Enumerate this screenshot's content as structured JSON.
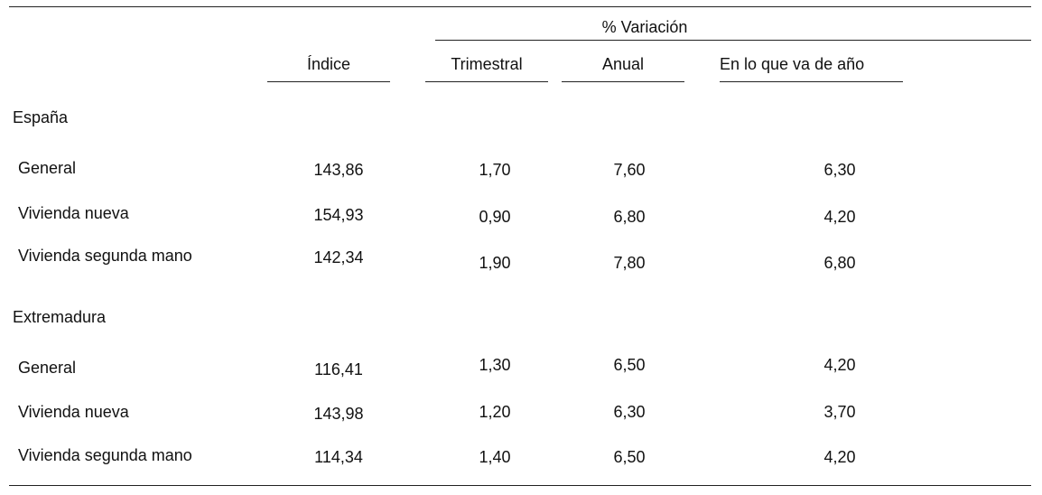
{
  "header": {
    "variacion_label": "% Variación",
    "indice_label": "Índice",
    "trimestral_label": "Trimestral",
    "anual_label": "Anual",
    "ytd_label": "En lo que va de año"
  },
  "sections": [
    {
      "name": "España",
      "rows": [
        {
          "label": "General",
          "indice": "143,86",
          "trimestral": "1,70",
          "anual": "7,60",
          "ytd": "6,30"
        },
        {
          "label": "Vivienda nueva",
          "indice": "154,93",
          "trimestral": "0,90",
          "anual": "6,80",
          "ytd": "4,20"
        },
        {
          "label": "Vivienda segunda mano",
          "indice": "142,34",
          "trimestral": "1,90",
          "anual": "7,80",
          "ytd": "6,80"
        }
      ]
    },
    {
      "name": "Extremadura",
      "rows": [
        {
          "label": "General",
          "indice": "116,41",
          "trimestral": "1,30",
          "anual": "6,50",
          "ytd": "4,20"
        },
        {
          "label": "Vivienda nueva",
          "indice": "143,98",
          "trimestral": "1,20",
          "anual": "6,30",
          "ytd": "3,70"
        },
        {
          "label": "Vivienda segunda mano",
          "indice": "114,34",
          "trimestral": "1,40",
          "anual": "6,50",
          "ytd": "4,20"
        }
      ]
    }
  ]
}
